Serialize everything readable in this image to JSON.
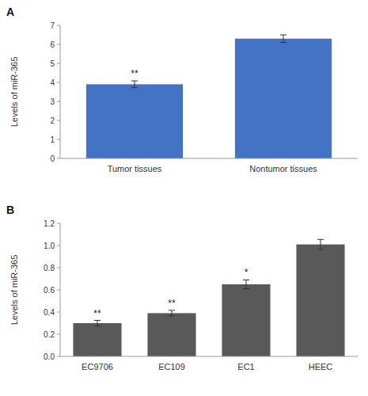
{
  "chart_data": [
    {
      "type": "bar",
      "title": "A",
      "categories": [
        "Tumor tissues",
        "Nontumor tissues"
      ],
      "values": [
        3.9,
        6.3
      ],
      "errors": [
        0.18,
        0.2
      ],
      "color": "#4472C4",
      "ylabel": "Levels of miR-365",
      "ylim": [
        0,
        7
      ],
      "yticks": [
        0,
        1,
        2,
        3,
        4,
        5,
        6,
        7
      ],
      "annotations": [
        "**",
        null
      ],
      "grid": false
    },
    {
      "type": "bar",
      "title": "B",
      "categories": [
        "EC9706",
        "EC109",
        "EC1",
        "HEEC"
      ],
      "values": [
        0.3,
        0.39,
        0.65,
        1.01
      ],
      "errors": [
        0.025,
        0.025,
        0.04,
        0.045
      ],
      "color": "#595959",
      "ylabel": "Levels of miR-365",
      "ylim": [
        0,
        1.2
      ],
      "yticks": [
        {
          "value": 0,
          "label": "0.0"
        },
        0.2,
        0.4,
        0.6,
        0.8,
        {
          "value": 1.0,
          "label": "1.0"
        },
        1.2
      ],
      "annotations": [
        "**",
        "**",
        "*",
        null
      ],
      "grid": false
    }
  ]
}
